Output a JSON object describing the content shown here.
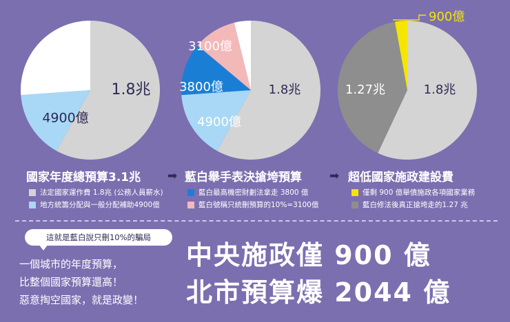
{
  "chart_data": [
    {
      "type": "pie",
      "slices": [
        {
          "label": "1.8兆",
          "value": 18000,
          "color": "#d4d4d4"
        },
        {
          "label": "4900億",
          "value": 4900,
          "color": "#a8d8f5"
        },
        {
          "label": "",
          "value": 8100,
          "color": "#ffffff"
        }
      ],
      "title": "國家年度總預算3.1兆",
      "legend": [
        {
          "text": "法定國家運作費 1.8兆 (公務人員薪水)",
          "color": "#d4d4d4"
        },
        {
          "text": "地方統籌分配與一般分配補助4900億",
          "color": "#a8d8f5"
        }
      ]
    },
    {
      "type": "pie",
      "slices": [
        {
          "label": "1.8兆",
          "value": 18000,
          "color": "#d4d4d4"
        },
        {
          "label": "4900億",
          "value": 4900,
          "color": "#a8d8f5"
        },
        {
          "label": "3800億",
          "value": 3800,
          "color": "#1a7fd4"
        },
        {
          "label": "3100億",
          "value": 3100,
          "color": "#f3b8b8"
        },
        {
          "label": "",
          "value": 1200,
          "color": "#ffffff"
        }
      ],
      "title": "藍白舉手表決搶垮預算",
      "legend": [
        {
          "text": "藍白最高機密財劃法拿走 3800 億",
          "color": "#1a7fd4"
        },
        {
          "text": "藍白號稱只統刪預算的10%=3100億",
          "color": "#f3b8b8"
        }
      ]
    },
    {
      "type": "pie",
      "slices": [
        {
          "label": "1.8兆",
          "value": 18000,
          "color": "#d4d4d4"
        },
        {
          "label": "1.27兆",
          "value": 12700,
          "color": "#8e8e8e"
        },
        {
          "label": "900億",
          "value": 900,
          "color": "#f5e600"
        }
      ],
      "title": "超低國家施政建設費",
      "legend": [
        {
          "text": "僅剩 900 億舉債施政各項國家業務",
          "color": "#f5e600"
        },
        {
          "text": "藍白修法後真正搶垮走的1.27 兆",
          "color": "#8e8e8e"
        }
      ]
    }
  ],
  "bottom": {
    "pill": "這就是藍白說只刪10%的騙局",
    "lines": [
      "一個城市的年度預算，",
      "比整個國家預算還高！",
      "惡意掏空國家，就是政變！"
    ],
    "headline_1": "中央施政僅 900 億",
    "headline_2": "北市預算爆 2044 億"
  },
  "arrows": [
    "➡",
    "➡"
  ],
  "colors": {
    "background": "#7b6fb0",
    "dark_text": "#2d2a55",
    "callout_yellow": "#f5e600"
  }
}
